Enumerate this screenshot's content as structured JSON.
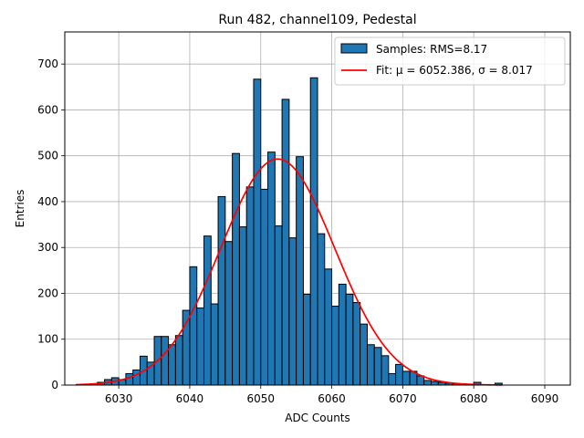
{
  "chart_data": {
    "type": "bar",
    "title": "Run 482, channel109, Pedestal",
    "xlabel": "ADC Counts",
    "ylabel": "Entries",
    "xlim": [
      6022.4,
      6093.6
    ],
    "ylim": [
      0,
      770
    ],
    "xticks": [
      6030,
      6040,
      6050,
      6060,
      6070,
      6080,
      6090
    ],
    "yticks": [
      0,
      100,
      200,
      300,
      400,
      500,
      600,
      700
    ],
    "grid": true,
    "legend_position": "top-right",
    "histogram": {
      "name": "Samples: RMS=8.17",
      "color": "#1f77b4",
      "bin_width": 1,
      "bin_starts": [
        6024,
        6025,
        6026,
        6027,
        6028,
        6029,
        6030,
        6031,
        6032,
        6033,
        6034,
        6035,
        6036,
        6037,
        6038,
        6039,
        6040,
        6041,
        6042,
        6043,
        6044,
        6045,
        6046,
        6047,
        6048,
        6049,
        6050,
        6051,
        6052,
        6053,
        6054,
        6055,
        6056,
        6057,
        6058,
        6059,
        6060,
        6061,
        6062,
        6063,
        6064,
        6065,
        6066,
        6067,
        6068,
        6069,
        6070,
        6071,
        6072,
        6073,
        6074,
        6075,
        6076,
        6077,
        6078,
        6079,
        6080,
        6081,
        6082,
        6083
      ],
      "values": [
        1,
        2,
        3,
        6,
        12,
        16,
        12,
        25,
        33,
        63,
        50,
        106,
        106,
        88,
        108,
        163,
        258,
        168,
        325,
        177,
        411,
        313,
        505,
        345,
        432,
        667,
        427,
        508,
        347,
        623,
        321,
        498,
        198,
        670,
        330,
        253,
        172,
        220,
        198,
        180,
        133,
        88,
        82,
        64,
        25,
        45,
        30,
        30,
        20,
        10,
        8,
        6,
        4,
        3,
        2,
        1,
        6,
        1,
        1,
        4
      ]
    },
    "fit": {
      "name": "Fit: μ = 6052.386, σ = 8.017",
      "color": "#ff0000",
      "mu": 6052.386,
      "sigma": 8.017,
      "amplitude": 493,
      "x_range": [
        6024,
        6084
      ]
    }
  }
}
